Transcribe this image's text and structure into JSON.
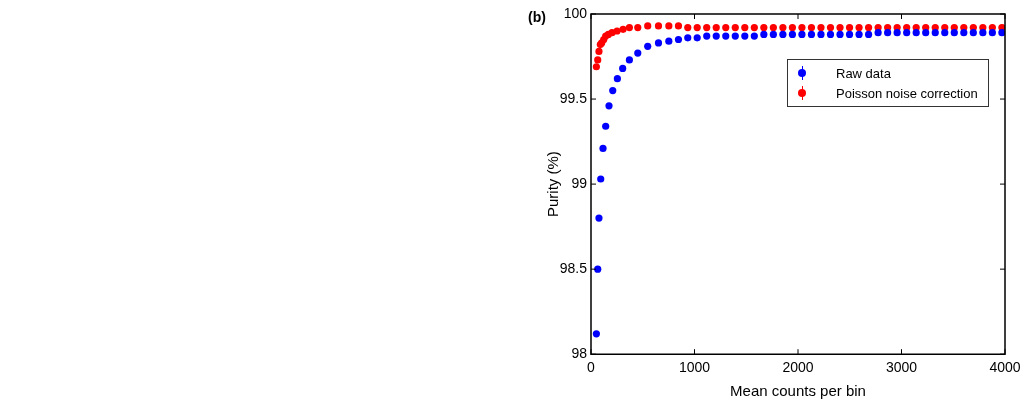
{
  "chart_data": {
    "type": "scatter",
    "title": "(b)",
    "xlabel": "Mean counts per bin",
    "ylabel": "Purity (%)",
    "xlim": [
      0,
      4000
    ],
    "xticks": [
      0,
      1000,
      2000,
      3000,
      4000
    ],
    "ylim": [
      98,
      100
    ],
    "yticks": [
      98,
      98.5,
      99,
      99.5,
      100
    ],
    "grid": false,
    "legend": "top right",
    "marker": "circle",
    "series": [
      {
        "name": "Raw data",
        "color": "#0000ff",
        "x": [
          52,
          65,
          77,
          94,
          116,
          142,
          174,
          210,
          255,
          306,
          371,
          452,
          548,
          652,
          752,
          845,
          935,
          1026,
          1118,
          1210,
          1302,
          1394,
          1486,
          1578,
          1670,
          1762,
          1854,
          1946,
          2038,
          2130,
          2222,
          2314,
          2406,
          2498,
          2590,
          2682,
          2774,
          2866,
          2958,
          3050,
          3142,
          3234,
          3326,
          3418,
          3510,
          3602,
          3694,
          3786,
          3878,
          3970
        ],
        "values": [
          98.12,
          98.5,
          98.8,
          99.03,
          99.21,
          99.34,
          99.46,
          99.55,
          99.62,
          99.68,
          99.73,
          99.77,
          99.81,
          99.83,
          99.84,
          99.85,
          99.86,
          99.86,
          99.87,
          99.87,
          99.87,
          99.87,
          99.87,
          99.87,
          99.88,
          99.88,
          99.88,
          99.88,
          99.88,
          99.88,
          99.88,
          99.88,
          99.88,
          99.88,
          99.88,
          99.88,
          99.89,
          99.89,
          99.89,
          99.89,
          99.89,
          99.89,
          99.89,
          99.89,
          99.89,
          99.89,
          99.89,
          99.89,
          99.89,
          99.89
        ]
      },
      {
        "name": "Poisson noise correction",
        "color": "#ff0000",
        "x": [
          52,
          65,
          77,
          90,
          103,
          123,
          142,
          168,
          203,
          252,
          310,
          371,
          452,
          548,
          652,
          752,
          845,
          935,
          1026,
          1118,
          1210,
          1302,
          1394,
          1486,
          1578,
          1670,
          1762,
          1854,
          1946,
          2038,
          2130,
          2222,
          2314,
          2406,
          2498,
          2590,
          2682,
          2774,
          2866,
          2958,
          3050,
          3142,
          3234,
          3326,
          3418,
          3510,
          3602,
          3694,
          3786,
          3878,
          3970
        ],
        "values": [
          99.69,
          99.73,
          99.78,
          99.82,
          99.83,
          99.85,
          99.87,
          99.88,
          99.89,
          99.9,
          99.91,
          99.92,
          99.92,
          99.93,
          99.93,
          99.93,
          99.93,
          99.92,
          99.92,
          99.92,
          99.92,
          99.92,
          99.92,
          99.92,
          99.92,
          99.92,
          99.92,
          99.92,
          99.92,
          99.92,
          99.92,
          99.92,
          99.92,
          99.92,
          99.92,
          99.92,
          99.92,
          99.92,
          99.92,
          99.92,
          99.92,
          99.92,
          99.92,
          99.92,
          99.92,
          99.92,
          99.92,
          99.92,
          99.92,
          99.92,
          99.92
        ]
      }
    ]
  }
}
